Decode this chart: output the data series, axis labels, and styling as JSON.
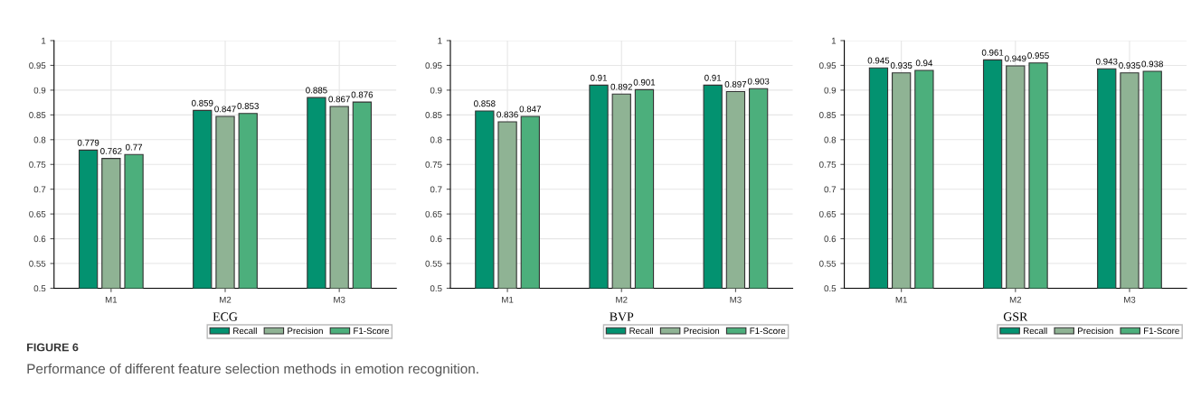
{
  "chart_data": [
    {
      "type": "bar",
      "xlabel": "ECG",
      "categories": [
        "M1",
        "M2",
        "M3"
      ],
      "series": [
        {
          "name": "Recall",
          "color": "#039270",
          "values": [
            0.779,
            0.859,
            0.885
          ]
        },
        {
          "name": "Precision",
          "color": "#8fb394",
          "values": [
            0.762,
            0.847,
            0.867
          ]
        },
        {
          "name": "F1-Score",
          "color": "#4caf7c",
          "values": [
            0.77,
            0.853,
            0.876
          ]
        }
      ],
      "ylim": [
        0.5,
        1
      ],
      "yticks": [
        0.5,
        0.55,
        0.6,
        0.65,
        0.7,
        0.75,
        0.8,
        0.85,
        0.9,
        0.95,
        1
      ],
      "grid": true,
      "legend": "bottom right",
      "data_labels": true
    },
    {
      "type": "bar",
      "xlabel": "BVP",
      "categories": [
        "M1",
        "M2",
        "M3"
      ],
      "series": [
        {
          "name": "Recall",
          "color": "#039270",
          "values": [
            0.858,
            0.91,
            0.91
          ]
        },
        {
          "name": "Precision",
          "color": "#8fb394",
          "values": [
            0.836,
            0.892,
            0.897
          ]
        },
        {
          "name": "F1-Score",
          "color": "#4caf7c",
          "values": [
            0.847,
            0.901,
            0.903
          ]
        }
      ],
      "ylim": [
        0.5,
        1
      ],
      "yticks": [
        0.5,
        0.55,
        0.6,
        0.65,
        0.7,
        0.75,
        0.8,
        0.85,
        0.9,
        0.95,
        1
      ],
      "grid": true,
      "legend": "bottom right",
      "data_labels": true
    },
    {
      "type": "bar",
      "xlabel": "GSR",
      "categories": [
        "M1",
        "M2",
        "M3"
      ],
      "series": [
        {
          "name": "Recall",
          "color": "#039270",
          "values": [
            0.945,
            0.961,
            0.943
          ]
        },
        {
          "name": "Precision",
          "color": "#8fb394",
          "values": [
            0.935,
            0.949,
            0.935
          ]
        },
        {
          "name": "F1-Score",
          "color": "#4caf7c",
          "values": [
            0.94,
            0.955,
            0.938
          ]
        }
      ],
      "ylim": [
        0.5,
        1
      ],
      "yticks": [
        0.5,
        0.55,
        0.6,
        0.65,
        0.7,
        0.75,
        0.8,
        0.85,
        0.9,
        0.95,
        1
      ],
      "grid": true,
      "legend": "bottom right",
      "data_labels": true,
      "annotations": [
        "FIGURE 6",
        "Performance of different feature selection methods in emotion recognition."
      ]
    }
  ]
}
